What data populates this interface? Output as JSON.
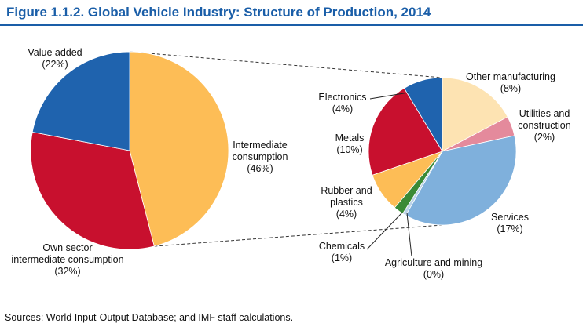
{
  "title": "Figure 1.1.2.  Global Vehicle Industry: Structure of Production, 2014",
  "source": "Sources: World Input-Output Database; and IMF staff calculations.",
  "colors": {
    "value_added": "#1f63ae",
    "own_sector": "#c8102e",
    "intermediate": "#fdbd56",
    "electronics": "#1f63ae",
    "metals": "#c8102e",
    "rubber": "#fdbd56",
    "chemicals": "#3a8a36",
    "agriculture": "#bcd3e8",
    "services": "#7fb0dc",
    "utilities": "#e48a9c",
    "other": "#fde3b2"
  },
  "chart_data": [
    {
      "type": "pie",
      "slices": [
        {
          "label": "Intermediate consumption",
          "display": [
            "Intermediate",
            "consumption",
            "(46%)"
          ],
          "value": 46,
          "color": "#fdbd56"
        },
        {
          "label": "Own sector intermediate consumption",
          "display": [
            "Own sector",
            "intermediate consumption",
            "(32%)"
          ],
          "value": 32,
          "color": "#c8102e"
        },
        {
          "label": "Value added",
          "display": [
            "Value added",
            "(22%)"
          ],
          "value": 22,
          "color": "#1f63ae"
        }
      ]
    },
    {
      "type": "pie",
      "slices": [
        {
          "label": "Other manufacturing",
          "display": [
            "Other manufacturing",
            "(8%)"
          ],
          "value": 8,
          "color": "#fde3b2"
        },
        {
          "label": "Utilities and construction",
          "display": [
            "Utilities and",
            "construction",
            "(2%)"
          ],
          "value": 2,
          "color": "#e48a9c"
        },
        {
          "label": "Services",
          "display": [
            "Services",
            "(17%)"
          ],
          "value": 17,
          "color": "#7fb0dc"
        },
        {
          "label": "Agriculture and mining",
          "display": [
            "Agriculture and mining",
            "(0%)"
          ],
          "value": 0,
          "color": "#bcd3e8"
        },
        {
          "label": "Chemicals",
          "display": [
            "Chemicals",
            "(1%)"
          ],
          "value": 1,
          "color": "#3a8a36"
        },
        {
          "label": "Rubber and plastics",
          "display": [
            "Rubber and",
            "plastics",
            "(4%)"
          ],
          "value": 4,
          "color": "#fdbd56"
        },
        {
          "label": "Metals",
          "display": [
            "Metals",
            "(10%)"
          ],
          "value": 10,
          "color": "#c8102e"
        },
        {
          "label": "Electronics",
          "display": [
            "Electronics",
            "(4%)"
          ],
          "value": 4,
          "color": "#1f63ae"
        }
      ]
    }
  ]
}
